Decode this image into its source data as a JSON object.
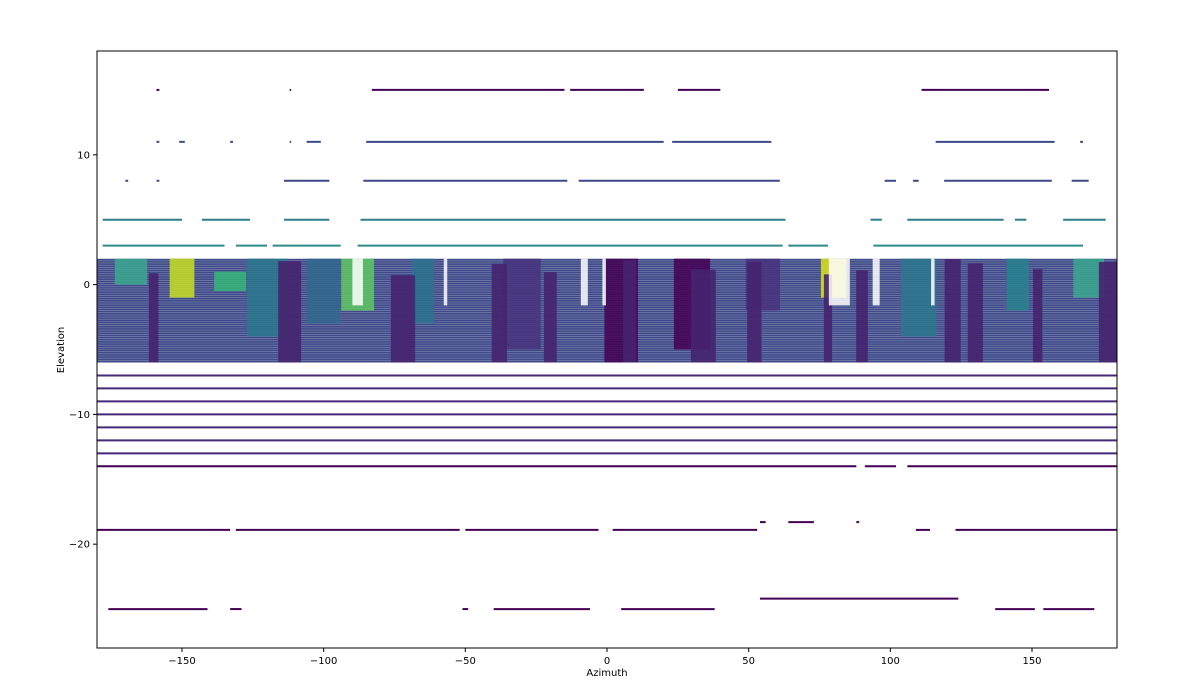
{
  "chart_data": {
    "type": "scatter",
    "title": "",
    "xlabel": "Azimuth",
    "ylabel": "Elevation",
    "xlim": [
      -180,
      180
    ],
    "ylim": [
      -28,
      18
    ],
    "xticks": [
      -150,
      -100,
      -50,
      0,
      50,
      100,
      150
    ],
    "yticks": [
      -20,
      -10,
      0,
      10
    ],
    "xtick_labels": [
      "−150",
      "−100",
      "−50",
      "0",
      "50",
      "100",
      "150"
    ],
    "ytick_labels": [
      "−20",
      "−10",
      "0",
      "10"
    ],
    "grid": false,
    "legend": "none",
    "colormap": [
      "#440154",
      "#3b528b",
      "#21918c",
      "#5ec962",
      "#fde725"
    ],
    "rings": [
      {
        "elevation": 15,
        "segments": [
          [
            -159,
            -158
          ],
          [
            -112,
            -111.5
          ],
          [
            -83,
            -15
          ],
          [
            -13,
            13
          ],
          [
            25,
            40
          ],
          [
            111,
            156
          ]
        ],
        "color": "#440154"
      },
      {
        "elevation": 11,
        "segments": [
          [
            -159,
            -158
          ],
          [
            -151,
            -149
          ],
          [
            -133,
            -132
          ],
          [
            -112,
            -111.5
          ],
          [
            -106,
            -101
          ],
          [
            -85,
            20
          ],
          [
            23,
            58
          ],
          [
            116,
            158
          ],
          [
            167,
            168
          ]
        ],
        "color": "#3b4a8a"
      },
      {
        "elevation": 8,
        "segments": [
          [
            -170,
            -169
          ],
          [
            -159,
            -158
          ],
          [
            -114,
            -98
          ],
          [
            -86,
            -14
          ],
          [
            -10,
            61
          ],
          [
            98,
            102
          ],
          [
            108,
            110
          ],
          [
            119,
            157
          ],
          [
            164,
            170
          ]
        ],
        "color": "#3b4a8a"
      },
      {
        "elevation": 5,
        "segments": [
          [
            -178,
            -150
          ],
          [
            -143,
            -126
          ],
          [
            -114,
            -98
          ],
          [
            -87,
            63
          ],
          [
            93,
            97
          ],
          [
            106,
            140
          ],
          [
            144,
            148
          ],
          [
            161,
            176
          ]
        ],
        "color": "#2a7f8e"
      },
      {
        "elevation": 3,
        "segments": [
          [
            -178,
            -135
          ],
          [
            -131,
            -120
          ],
          [
            -118,
            -94
          ],
          [
            -88,
            62
          ],
          [
            64,
            78
          ],
          [
            94,
            168
          ]
        ],
        "color": "#2f8a8c"
      },
      {
        "elevation": -7,
        "segments": [
          [
            -180,
            180
          ]
        ],
        "color": "#482878"
      },
      {
        "elevation": -8,
        "segments": [
          [
            -180,
            180
          ]
        ],
        "color": "#482878"
      },
      {
        "elevation": -9,
        "segments": [
          [
            -180,
            180
          ]
        ],
        "color": "#482878"
      },
      {
        "elevation": -10,
        "segments": [
          [
            -180,
            180
          ]
        ],
        "color": "#482878"
      },
      {
        "elevation": -11,
        "segments": [
          [
            -180,
            180
          ]
        ],
        "color": "#482878"
      },
      {
        "elevation": -12,
        "segments": [
          [
            -180,
            180
          ]
        ],
        "color": "#482878"
      },
      {
        "elevation": -13,
        "segments": [
          [
            -180,
            180
          ]
        ],
        "color": "#482878"
      },
      {
        "elevation": -14,
        "segments": [
          [
            -180,
            88
          ],
          [
            91,
            102
          ],
          [
            106,
            180
          ]
        ],
        "color": "#440154"
      },
      {
        "elevation": -18.9,
        "segments": [
          [
            -180,
            -133
          ],
          [
            -131,
            -52
          ],
          [
            -50,
            -3
          ],
          [
            2,
            53
          ],
          [
            109,
            114
          ],
          [
            123,
            180
          ]
        ],
        "color": "#440154"
      },
      {
        "elevation": -18.3,
        "segments": [
          [
            54,
            56
          ],
          [
            64,
            73
          ],
          [
            88,
            89
          ]
        ],
        "color": "#440154"
      },
      {
        "elevation": -25,
        "segments": [
          [
            -176,
            -141
          ],
          [
            -133,
            -129
          ],
          [
            -51,
            -49
          ],
          [
            -40,
            -6
          ],
          [
            5,
            38
          ],
          [
            137,
            151
          ],
          [
            154,
            172
          ]
        ],
        "color": "#440154"
      },
      {
        "elevation": -24.2,
        "segments": [
          [
            54,
            124
          ]
        ],
        "color": "#440154"
      }
    ],
    "dense_band": {
      "elevation_range": [
        -6,
        2
      ],
      "beam_count": 48,
      "base_color": "#433e85"
    },
    "clusters": [
      {
        "az": -168,
        "el_top": 2,
        "el_bottom": 0,
        "color": "#3aa88f"
      },
      {
        "az": -150,
        "el_top": 2,
        "el_bottom": -1,
        "color": "#c7e020"
      },
      {
        "az": -133,
        "el_top": 1,
        "el_bottom": -0.5,
        "color": "#35b779"
      },
      {
        "az": -120,
        "el_top": 2,
        "el_bottom": -4,
        "color": "#2a788e"
      },
      {
        "az": -100,
        "el_top": 2,
        "el_bottom": -3,
        "color": "#31688e"
      },
      {
        "az": -88,
        "el_top": 2,
        "el_bottom": -2,
        "color": "#5ec962"
      },
      {
        "az": -65,
        "el_top": 2,
        "el_bottom": -3,
        "color": "#2c728e"
      },
      {
        "az": -30,
        "el_top": 2,
        "el_bottom": -5,
        "color": "#46327e"
      },
      {
        "az": 5,
        "el_top": 2,
        "el_bottom": -6,
        "color": "#440154"
      },
      {
        "az": 30,
        "el_top": 2,
        "el_bottom": -5,
        "color": "#440154"
      },
      {
        "az": 55,
        "el_top": 2,
        "el_bottom": -2,
        "color": "#46327e"
      },
      {
        "az": 80,
        "el_top": 2,
        "el_bottom": -1,
        "color": "#dde318"
      },
      {
        "az": 110,
        "el_top": 2,
        "el_bottom": -4,
        "color": "#2a788e"
      },
      {
        "az": 145,
        "el_top": 2,
        "el_bottom": -2,
        "color": "#26828e"
      },
      {
        "az": 170,
        "el_top": 2,
        "el_bottom": -1,
        "color": "#3aa88f"
      }
    ]
  }
}
